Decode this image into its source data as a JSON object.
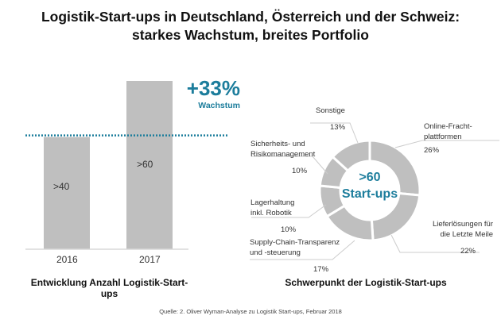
{
  "header": {
    "title_line1": "Logistik-Start-ups in Deutschland, Österreich und der Schweiz:",
    "title_line2": "starkes Wachstum, breites Portfolio"
  },
  "source": "Quelle: 2. Oliver Wyman-Analyse zu Logistik Start-ups, Februar 2018",
  "colors": {
    "bar": "#bfbfbf",
    "accent": "#1c7d9c",
    "leader": "#cccccc"
  },
  "chart_data": [
    {
      "type": "bar",
      "title": "Entwicklung Anzahl Logistik-Start-ups",
      "categories": [
        "2016",
        "2017"
      ],
      "values": [
        40,
        60
      ],
      "data_labels": [
        ">40",
        ">60"
      ],
      "ylim": [
        0,
        70
      ],
      "grid": false,
      "annotation": {
        "value": "+33%",
        "label": "Wachstum",
        "reference_line_value": 40
      }
    },
    {
      "type": "pie",
      "title": "Schwerpunkt der Logistik-Start-ups",
      "center_label_line1": ">60",
      "center_label_line2": "Start-ups",
      "slices": [
        {
          "label_line1": "Online-Fracht-",
          "label_line2": "plattformen",
          "value": 26,
          "pct": "26%"
        },
        {
          "label_line1": "Lieferlösungen für",
          "label_line2": "die Letzte Meile",
          "value": 22,
          "pct": "22%"
        },
        {
          "label_line1": "Supply-Chain-Transparenz",
          "label_line2": "und -steuerung",
          "value": 17,
          "pct": "17%"
        },
        {
          "label_line1": "Lagerhaltung",
          "label_line2": "inkl. Robotik",
          "value": 10,
          "pct": "10%"
        },
        {
          "label_line1": "Sicherheits- und",
          "label_line2": "Risikomanagement",
          "value": 10,
          "pct": "10%"
        },
        {
          "label_line1": "Sonstige",
          "label_line2": "",
          "value": 13,
          "pct": "13%"
        }
      ]
    }
  ]
}
